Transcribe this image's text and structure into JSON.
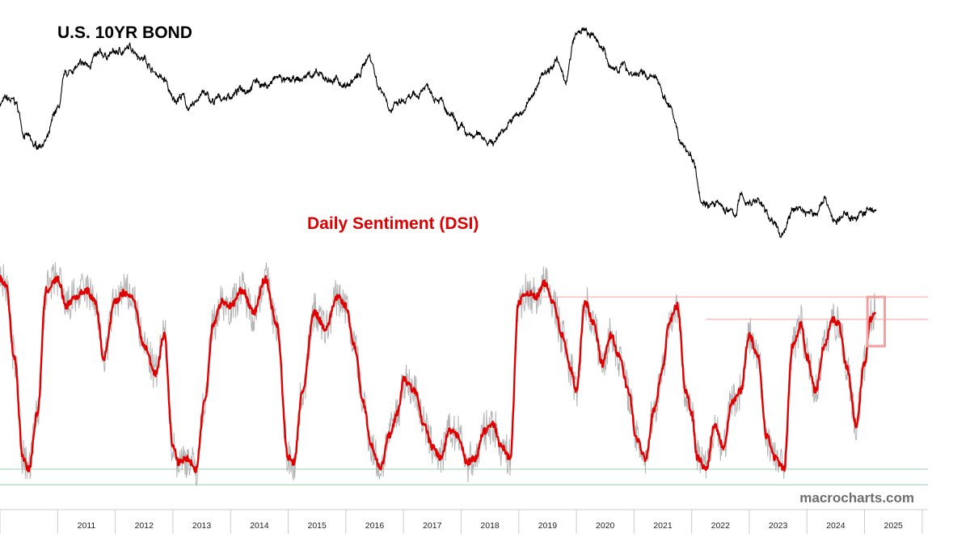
{
  "chart_data": [
    {
      "type": "line",
      "title": "U.S. 10YR BOND",
      "color": "#000000",
      "x": [
        2010.0,
        2010.1,
        2010.25,
        2010.45,
        2010.6,
        2010.8,
        2011.0,
        2011.15,
        2011.3,
        2011.5,
        2011.65,
        2011.8,
        2012.0,
        2012.15,
        2012.3,
        2012.5,
        2012.7,
        2012.85,
        2013.0,
        2013.15,
        2013.3,
        2013.5,
        2013.7,
        2013.85,
        2014.0,
        2014.25,
        2014.45,
        2014.6,
        2014.85,
        2015.0,
        2015.2,
        2015.4,
        2015.6,
        2015.8,
        2016.0,
        2016.2,
        2016.4,
        2016.6,
        2016.8,
        2017.0,
        2017.2,
        2017.4,
        2017.6,
        2017.8,
        2018.0,
        2018.15,
        2018.35,
        2018.55,
        2018.75,
        2019.0,
        2019.2,
        2019.45,
        2019.65,
        2019.8,
        2020.0,
        2020.1,
        2020.3,
        2020.45,
        2020.6,
        2020.8,
        2021.0,
        2021.2,
        2021.4,
        2021.6,
        2021.8,
        2022.0,
        2022.2,
        2022.4,
        2022.6,
        2022.75,
        2022.85,
        2023.0,
        2023.15,
        2023.35,
        2023.55,
        2023.75,
        2023.85,
        2024.0,
        2024.15,
        2024.3,
        2024.5,
        2024.7,
        2024.85,
        2025.0,
        2025.2
      ],
      "values": [
        73,
        74,
        73,
        60,
        55,
        58,
        70,
        84,
        87,
        88,
        91,
        92,
        93,
        94,
        95,
        91,
        85,
        82,
        74,
        76,
        70,
        77,
        73,
        75,
        76,
        79,
        82,
        80,
        83,
        81,
        82,
        85,
        83,
        82,
        80,
        83,
        92,
        79,
        71,
        73,
        75,
        80,
        76,
        67,
        62,
        59,
        60,
        57,
        63,
        68,
        74,
        86,
        90,
        82,
        100,
        102,
        99,
        96,
        86,
        88,
        85,
        84,
        82,
        73,
        58,
        52,
        34,
        32,
        30,
        28,
        35,
        33,
        34,
        27,
        20,
        29,
        31,
        29,
        28,
        35,
        25,
        28,
        27,
        29,
        30
      ],
      "line_width": 1.1
    },
    {
      "type": "line",
      "title": "Daily Sentiment (DSI)",
      "x": [
        2010.0,
        2010.1,
        2010.25,
        2010.4,
        2010.5,
        2010.65,
        2010.8,
        2011.0,
        2011.15,
        2011.3,
        2011.5,
        2011.65,
        2011.8,
        2012.0,
        2012.15,
        2012.3,
        2012.5,
        2012.7,
        2012.85,
        2013.0,
        2013.1,
        2013.25,
        2013.4,
        2013.55,
        2013.7,
        2013.85,
        2014.0,
        2014.2,
        2014.4,
        2014.6,
        2014.8,
        2015.0,
        2015.1,
        2015.25,
        2015.45,
        2015.65,
        2015.85,
        2016.0,
        2016.15,
        2016.3,
        2016.45,
        2016.6,
        2016.75,
        2016.9,
        2017.0,
        2017.2,
        2017.35,
        2017.5,
        2017.65,
        2017.8,
        2017.95,
        2018.1,
        2018.25,
        2018.4,
        2018.55,
        2018.7,
        2018.85,
        2019.0,
        2019.15,
        2019.3,
        2019.45,
        2019.6,
        2019.75,
        2019.9,
        2020.0,
        2020.15,
        2020.3,
        2020.45,
        2020.6,
        2020.75,
        2020.9,
        2021.05,
        2021.2,
        2021.35,
        2021.5,
        2021.6,
        2021.75,
        2021.9,
        2022.0,
        2022.1,
        2022.25,
        2022.4,
        2022.55,
        2022.7,
        2022.85,
        2023.0,
        2023.15,
        2023.3,
        2023.45,
        2023.6,
        2023.75,
        2023.9,
        2024.0,
        2024.15,
        2024.3,
        2024.45,
        2024.55,
        2024.7,
        2024.85,
        2025.0,
        2025.1,
        2025.18
      ],
      "color": "#e00000",
      "line_width": 2.4,
      "series": [
        {
          "name": "raw",
          "color": "#b4b4b4",
          "line_width": 1
        },
        {
          "name": "smoothed",
          "color": "#e00000",
          "line_width": 2.4
        }
      ],
      "values": [
        90,
        88,
        55,
        10,
        5,
        30,
        85,
        90,
        78,
        82,
        85,
        80,
        55,
        80,
        84,
        82,
        60,
        48,
        65,
        15,
        8,
        10,
        5,
        35,
        70,
        80,
        78,
        85,
        75,
        90,
        70,
        10,
        8,
        40,
        75,
        68,
        82,
        78,
        60,
        35,
        15,
        5,
        20,
        30,
        45,
        40,
        25,
        15,
        10,
        22,
        20,
        8,
        10,
        22,
        25,
        15,
        10,
        80,
        84,
        82,
        88,
        80,
        65,
        50,
        40,
        80,
        70,
        52,
        65,
        55,
        40,
        18,
        10,
        32,
        50,
        70,
        78,
        40,
        30,
        10,
        5,
        25,
        15,
        35,
        40,
        65,
        55,
        20,
        10,
        5,
        60,
        70,
        55,
        40,
        60,
        72,
        70,
        50,
        25,
        52,
        72,
        75
      ],
      "reference_lines": [
        {
          "y": 82,
          "x_start": 2019.4,
          "color": "#ffb3b3"
        },
        {
          "y": 72,
          "x_start": 2022.25,
          "color": "#ffb3b3"
        },
        {
          "y": 5,
          "color": "#a8dcc0"
        },
        {
          "y": -2,
          "color": "#a8dcc0"
        }
      ]
    }
  ],
  "x_axis": {
    "ticks": [
      "2011",
      "2012",
      "2013",
      "2014",
      "2015",
      "2016",
      "2017",
      "2018",
      "2019",
      "2020",
      "2021",
      "2022",
      "2023",
      "2024",
      "2025"
    ],
    "tick_values": [
      2011,
      2012,
      2013,
      2014,
      2015,
      2016,
      2017,
      2018,
      2019,
      2020,
      2021,
      2022,
      2023,
      2024,
      2025
    ],
    "range": [
      2010.0,
      2026.1
    ]
  },
  "watermark": "macrocharts.com",
  "highlight_box": {
    "x_range": [
      2025.05,
      2025.35
    ],
    "y_range": [
      60,
      82
    ],
    "color": "#f5a0a0"
  },
  "colors": {
    "background": "#ffffff",
    "axis": "#cccccc"
  }
}
